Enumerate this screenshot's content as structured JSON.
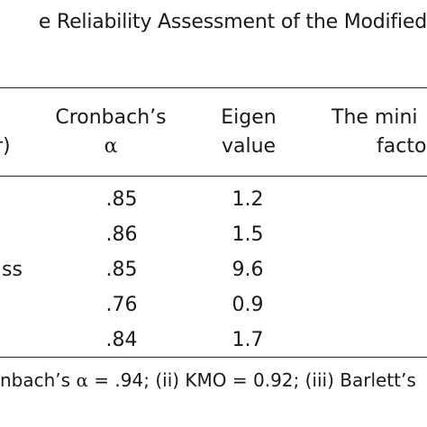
{
  "table": {
    "caption": "e Reliability Assessment of the Modified",
    "headers": {
      "variable_fragment": "r)",
      "alpha_line1": "Cronbach’s",
      "alpha_line2": "α",
      "eigen_line1": "Eigen",
      "eigen_line2": "value",
      "minfactor_line1": "The mini",
      "minfactor_line2": "facto"
    },
    "rows": [
      {
        "label": "",
        "alpha": ".85",
        "eigen": "1.2"
      },
      {
        "label": "",
        "alpha": ".86",
        "eigen": "1.5"
      },
      {
        "label": "ss",
        "alpha": ".85",
        "eigen": "9.6"
      },
      {
        "label": "",
        "alpha": ".76",
        "eigen": "0.9"
      },
      {
        "label": "",
        "alpha": ".84",
        "eigen": "1.7"
      }
    ],
    "note": {
      "prefix": "nbach’s ",
      "alpha_symbol": "α",
      "rest": " = .94; (ii) KMO = 0.92; (iii) Barlett’s"
    }
  }
}
